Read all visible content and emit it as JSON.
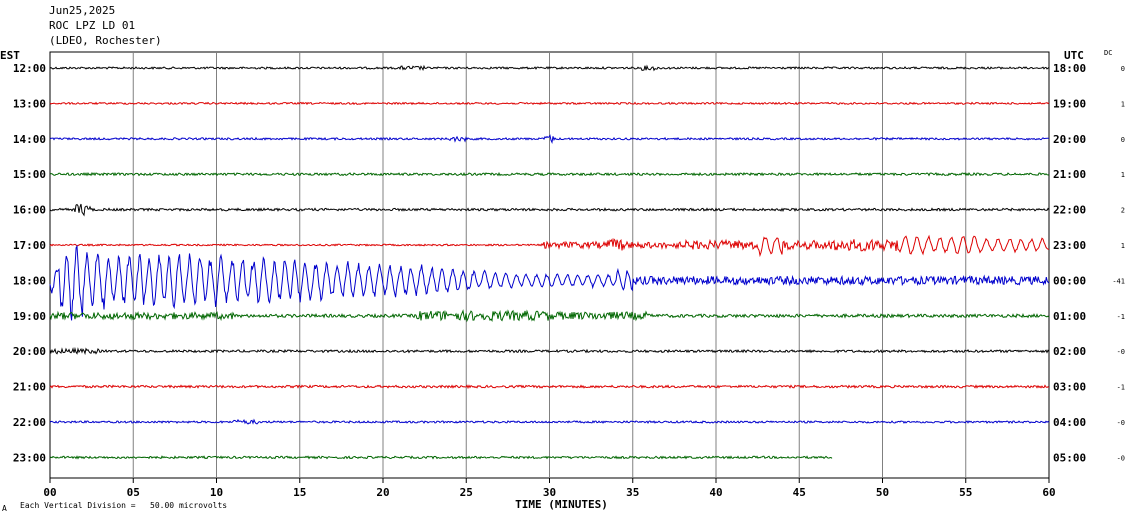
{
  "header": {
    "date": "Jun25,2025",
    "station": "ROC LPZ LD 01",
    "network": "(LDEO, Rochester)",
    "left_zone": "EST",
    "right_zone": "UTC",
    "dc_label": "DC"
  },
  "footer": {
    "xlabel": "TIME (MINUTES)",
    "scale_note": "Each Vertical Division =   50.00 microvolts",
    "corner_mark": "A"
  },
  "colors": {
    "black": "#000000",
    "red": "#dd0000",
    "blue": "#0000cc",
    "green": "#006600",
    "grid": "#808080"
  },
  "chart_data": {
    "type": "line",
    "title": "ROC LPZ LD 01",
    "xlabel": "TIME (MINUTES)",
    "xlim": [
      0,
      60
    ],
    "x_ticks": [
      "00",
      "05",
      "10",
      "15",
      "20",
      "25",
      "30",
      "35",
      "40",
      "45",
      "50",
      "55",
      "60"
    ],
    "grid": true,
    "traces": [
      {
        "est": "12:00",
        "utc": "18:00",
        "dc": "0",
        "color": "black",
        "end_minute": 60
      },
      {
        "est": "13:00",
        "utc": "19:00",
        "dc": "1",
        "color": "red",
        "end_minute": 60
      },
      {
        "est": "14:00",
        "utc": "20:00",
        "dc": "0",
        "color": "blue",
        "end_minute": 60
      },
      {
        "est": "15:00",
        "utc": "21:00",
        "dc": "1",
        "color": "green",
        "end_minute": 60
      },
      {
        "est": "16:00",
        "utc": "22:00",
        "dc": "2",
        "color": "black",
        "end_minute": 60
      },
      {
        "est": "17:00",
        "utc": "23:00",
        "dc": "1",
        "color": "red",
        "end_minute": 60
      },
      {
        "est": "18:00",
        "utc": "00:00",
        "dc": "-41",
        "color": "blue",
        "end_minute": 60
      },
      {
        "est": "19:00",
        "utc": "01:00",
        "dc": "-1",
        "color": "green",
        "end_minute": 60
      },
      {
        "est": "20:00",
        "utc": "02:00",
        "dc": "-0",
        "color": "black",
        "end_minute": 60
      },
      {
        "est": "21:00",
        "utc": "03:00",
        "dc": "-1",
        "color": "red",
        "end_minute": 60
      },
      {
        "est": "22:00",
        "utc": "04:00",
        "dc": "-0",
        "color": "blue",
        "end_minute": 60
      },
      {
        "est": "23:00",
        "utc": "05:00",
        "dc": "-0",
        "color": "green",
        "end_minute": 47
      }
    ]
  }
}
